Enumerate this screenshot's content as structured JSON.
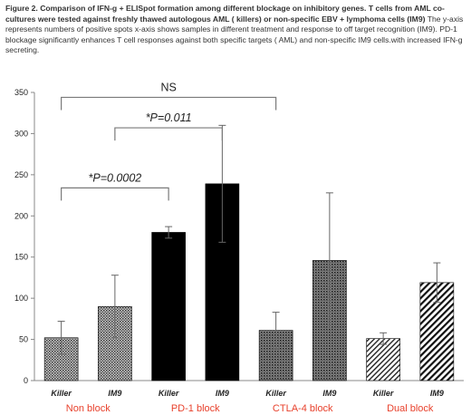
{
  "caption": {
    "bold": "Figure 2. Comparison of IFN-g + ELISpot formation among different blockage on inhibitory genes. T cells from AML co-cultures were tested against freshly thawed autologous AML ( killers) or non-specific EBV + lymphoma cells (IM9)",
    "normal": " The y-axis represents numbers of positive spots x-axis shows samples in different treatment and response to off target recognition (IM9). PD-1 blockage significantly enhances T cell responses against both specific targets ( AML) and non-specific IM9 cells.with increased IFN-g secreting."
  },
  "chart_data": {
    "type": "bar",
    "title": "",
    "xlabel": "",
    "ylabel": "",
    "ylim": [
      0,
      350
    ],
    "yticks": [
      0,
      50,
      100,
      150,
      200,
      250,
      300,
      350
    ],
    "categories": [
      "Killer",
      "IM9",
      "Killer",
      "IM9",
      "Killer",
      "IM9",
      "Killer",
      "IM9"
    ],
    "values": [
      52,
      90,
      180,
      239,
      61,
      146,
      51,
      119
    ],
    "error": [
      20,
      38,
      7,
      71,
      22,
      82,
      7,
      24
    ],
    "bar_patterns": [
      "dots-dense",
      "dots-dense",
      "solid",
      "solid",
      "dots-fine",
      "dots-fine",
      "diag-light",
      "diag-heavy"
    ],
    "groups": [
      {
        "label": "Non block",
        "color": "#e8412c"
      },
      {
        "label": "PD-1 block",
        "color": "#e8412c"
      },
      {
        "label": "CTLA-4 block",
        "color": "#e8412c"
      },
      {
        "label": "Dual block",
        "color": "#e8412c"
      }
    ],
    "annotations": [
      {
        "text": "NS",
        "from_bar": 0,
        "to_bar": 4,
        "level": 344
      },
      {
        "text": "*P=0.011",
        "from_bar": 1,
        "to_bar": 3,
        "level": 307
      },
      {
        "text": "*P=0.0002",
        "from_bar": 0,
        "to_bar": 2,
        "level": 234
      }
    ],
    "grid": false,
    "legend": "none"
  }
}
